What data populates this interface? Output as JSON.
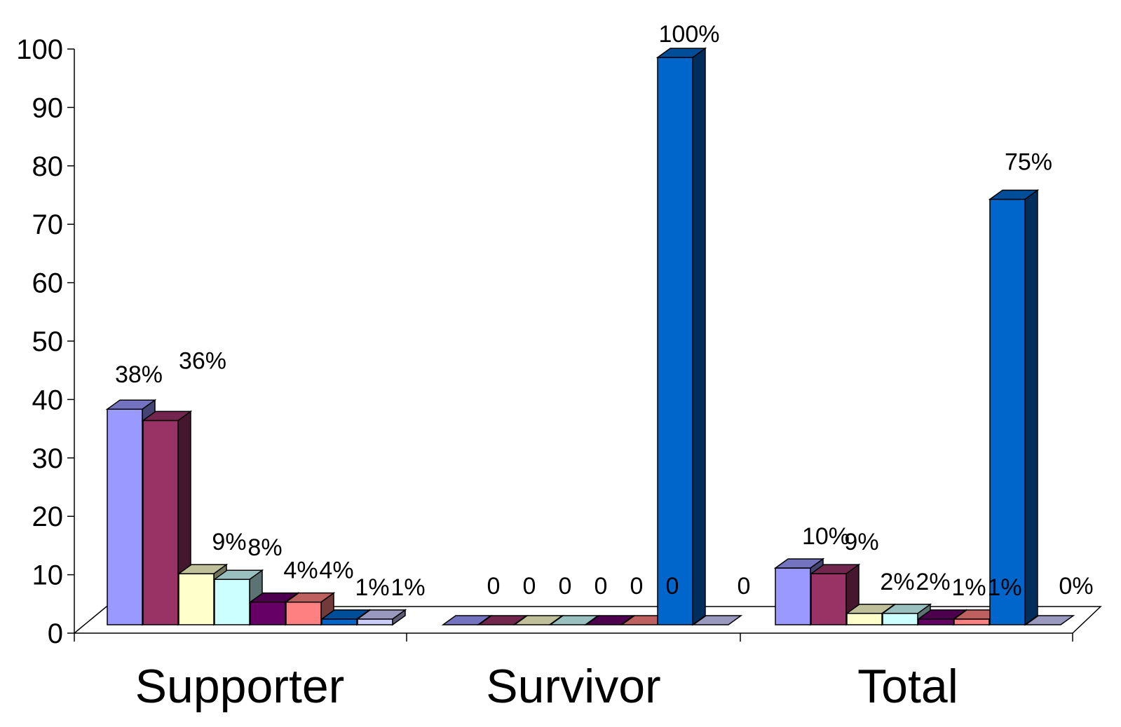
{
  "chart_data": {
    "type": "bar",
    "categories": [
      "Supporter",
      "Survivor",
      "Total"
    ],
    "series": [
      {
        "color": "#9999ff",
        "values": [
          38,
          0,
          10
        ]
      },
      {
        "color": "#993366",
        "values": [
          36,
          0,
          9
        ]
      },
      {
        "color": "#ffffcc",
        "values": [
          9,
          0,
          2
        ]
      },
      {
        "color": "#ccffff",
        "values": [
          8,
          0,
          2
        ]
      },
      {
        "color": "#660066",
        "values": [
          4,
          0,
          1
        ]
      },
      {
        "color": "#ff8080",
        "values": [
          4,
          0,
          1
        ]
      },
      {
        "color": "#0066cc",
        "values": [
          1,
          100,
          75
        ]
      },
      {
        "color": "#ccccff",
        "values": [
          1,
          0,
          0
        ]
      }
    ],
    "data_labels": [
      [
        "38%",
        "36%",
        "9%",
        "8%",
        "4%",
        "4%",
        "1%",
        "1%"
      ],
      [
        "0",
        "0",
        "0",
        "0",
        "0",
        "0",
        "100%",
        "0"
      ],
      [
        "10%",
        "9%",
        "2%",
        "2%",
        "1%",
        "1%",
        "75%",
        "0%"
      ]
    ],
    "yticks": [
      "0",
      "10",
      "20",
      "30",
      "40",
      "50",
      "60",
      "70",
      "80",
      "90",
      "100"
    ],
    "ylim": [
      0,
      100
    ],
    "grid": false,
    "legend": "none",
    "style": "3d-clustered-column"
  }
}
